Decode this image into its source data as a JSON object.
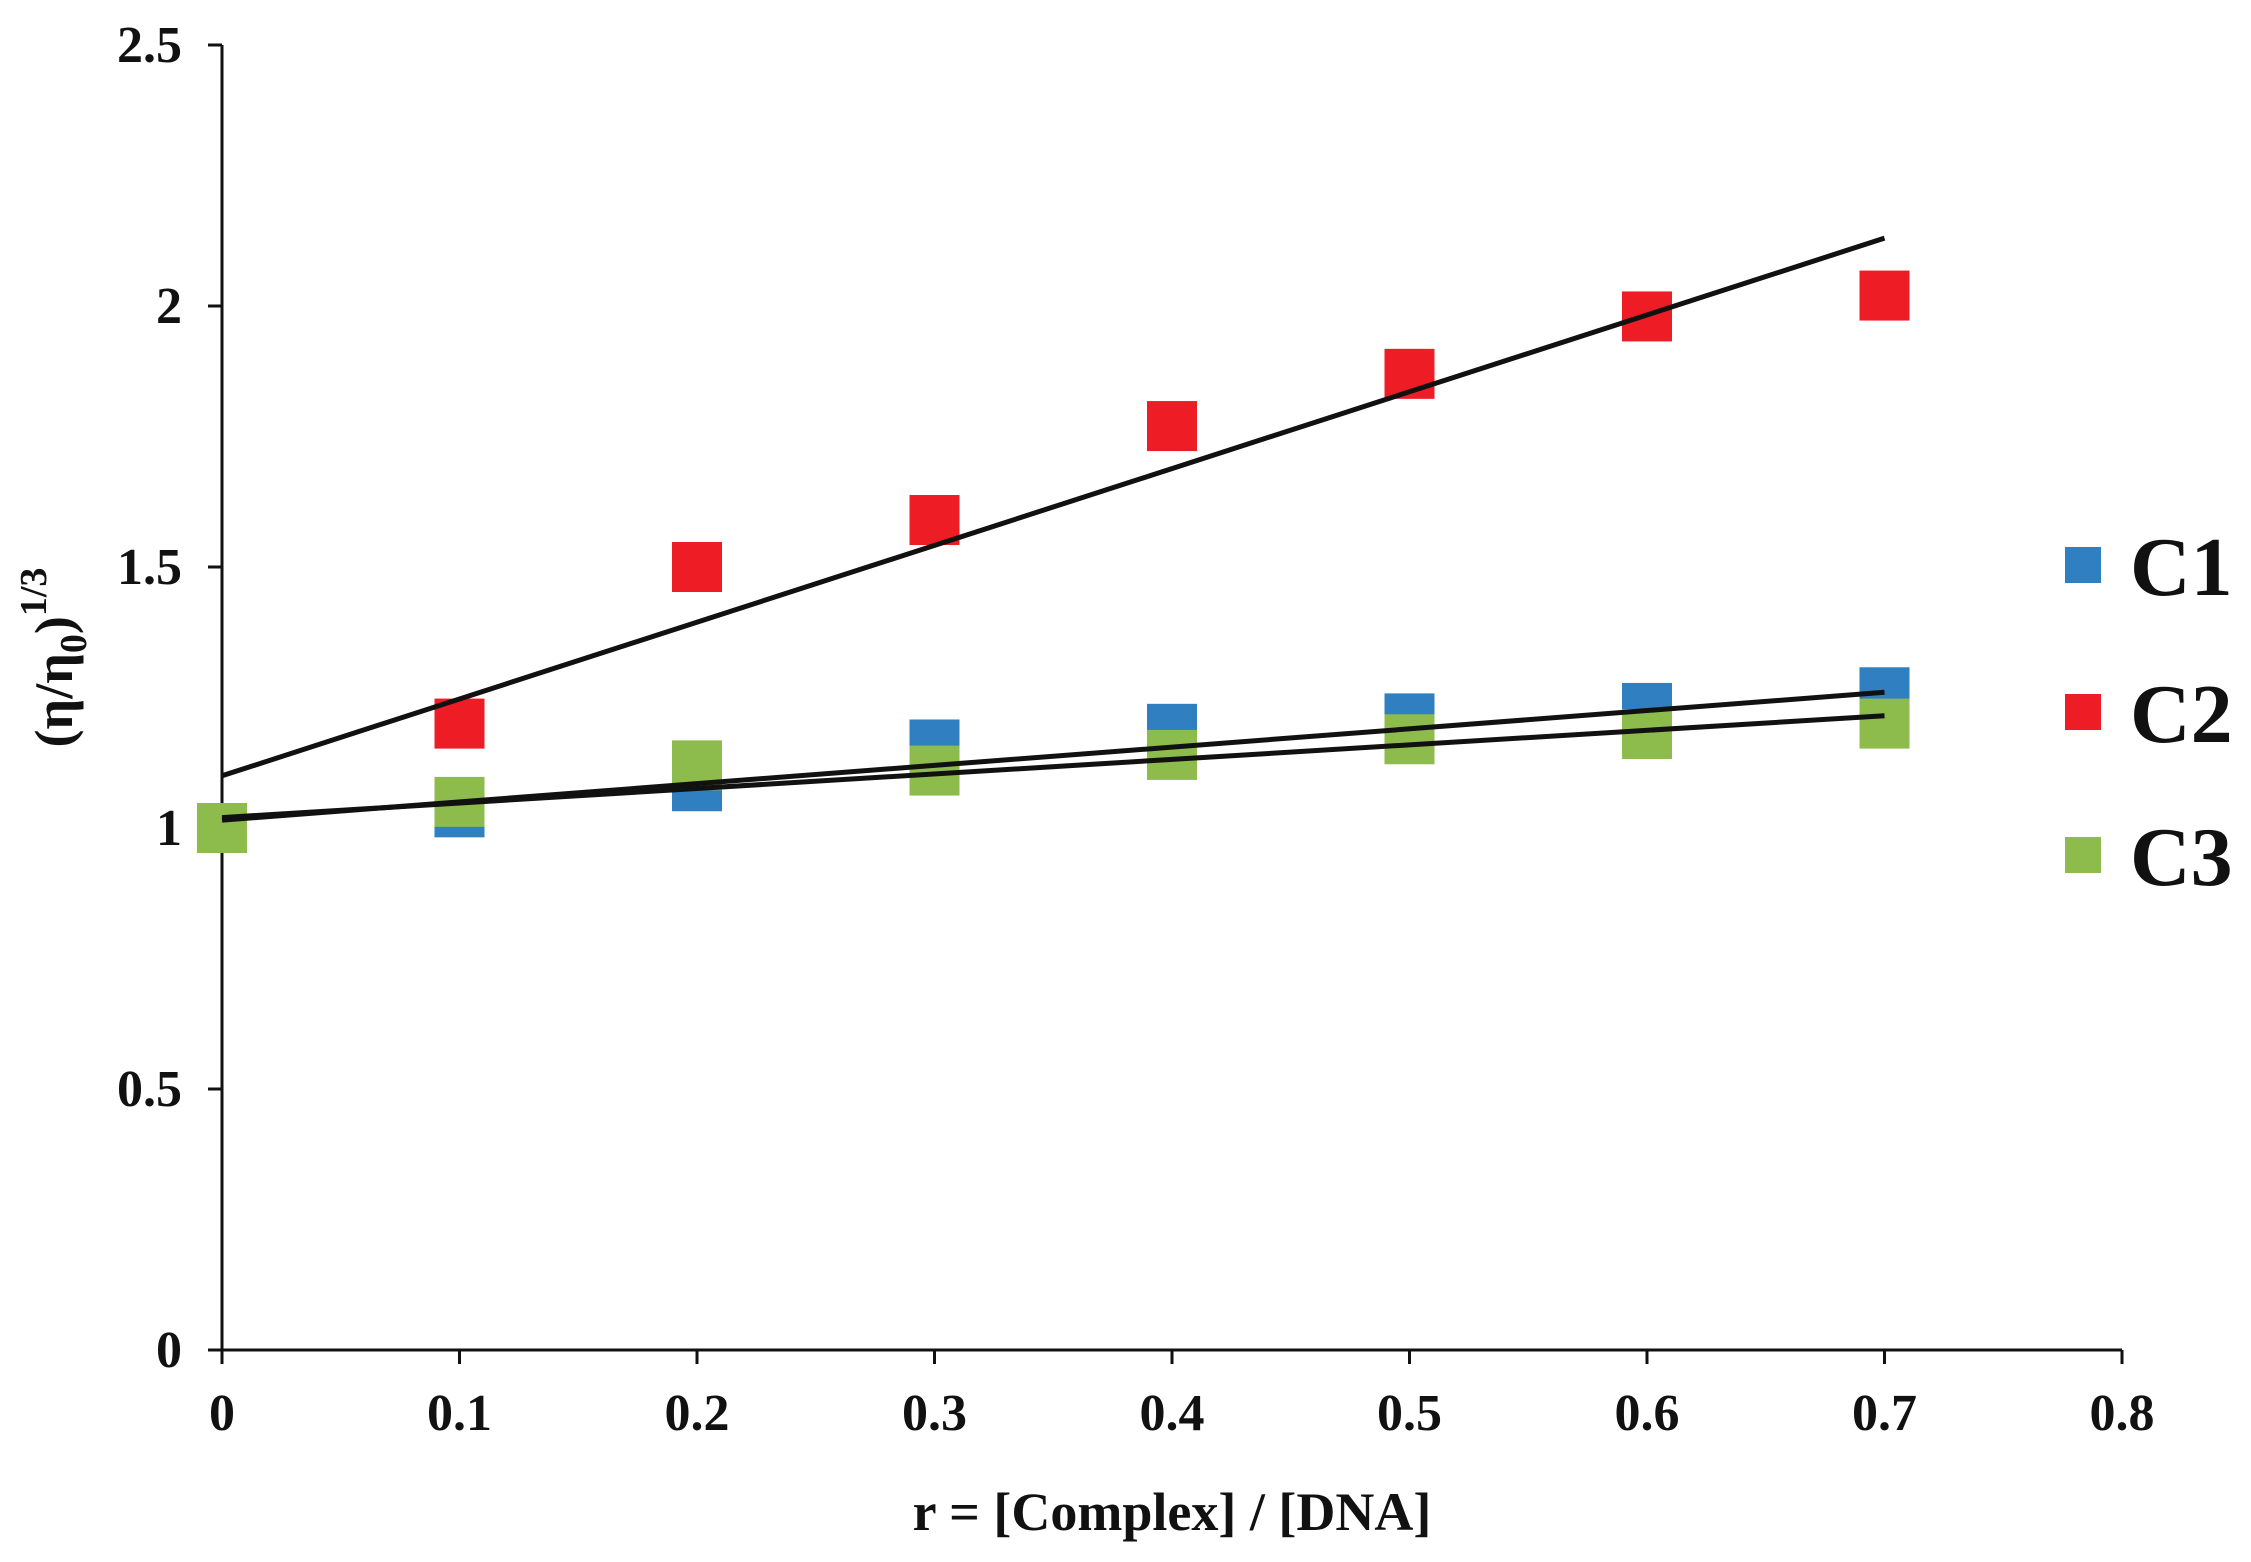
{
  "chart_data": {
    "type": "scatter",
    "title": "",
    "xlabel": "r = [Complex] / [DNA]",
    "ylabel_base": "(η/η",
    "ylabel_subscript": "0",
    "ylabel_close": ")",
    "ylabel_superscript": "1/3",
    "xlim": [
      0,
      0.8
    ],
    "ylim": [
      0,
      2.5
    ],
    "x_ticks": [
      0,
      0.1,
      0.2,
      0.3,
      0.4,
      0.5,
      0.6,
      0.7,
      0.8
    ],
    "x_tick_labels": [
      "0",
      "0.1",
      "0.2",
      "0.3",
      "0.4",
      "0.5",
      "0.6",
      "0.7",
      "0.8"
    ],
    "y_ticks": [
      0,
      0.5,
      1,
      1.5,
      2,
      2.5
    ],
    "y_tick_labels": [
      "0",
      "0.5",
      "1",
      "1.5",
      "2",
      "2.5"
    ],
    "grid": false,
    "legend_position": "right",
    "x": [
      0,
      0.1,
      0.2,
      0.3,
      0.4,
      0.5,
      0.6,
      0.7
    ],
    "series": [
      {
        "name": "C1",
        "color": "#2f7fc1",
        "marker": "square",
        "values": [
          1.0,
          1.03,
          1.08,
          1.16,
          1.19,
          1.21,
          1.23,
          1.26
        ],
        "trendline": {
          "x_start": 0,
          "y_start": 1.015,
          "x_end": 0.7,
          "y_end": 1.26
        }
      },
      {
        "name": "C2",
        "color": "#ee1c24",
        "marker": "square",
        "values": [
          1.0,
          1.2,
          1.5,
          1.59,
          1.77,
          1.87,
          1.98,
          2.02
        ],
        "trendline": {
          "x_start": 0,
          "y_start": 1.1,
          "x_end": 0.7,
          "y_end": 2.13
        }
      },
      {
        "name": "C3",
        "color": "#8dbb4c",
        "marker": "square",
        "values": [
          1.0,
          1.05,
          1.12,
          1.11,
          1.14,
          1.17,
          1.18,
          1.2
        ],
        "trendline": {
          "x_start": 0,
          "y_start": 1.02,
          "x_end": 0.7,
          "y_end": 1.215
        }
      }
    ]
  }
}
